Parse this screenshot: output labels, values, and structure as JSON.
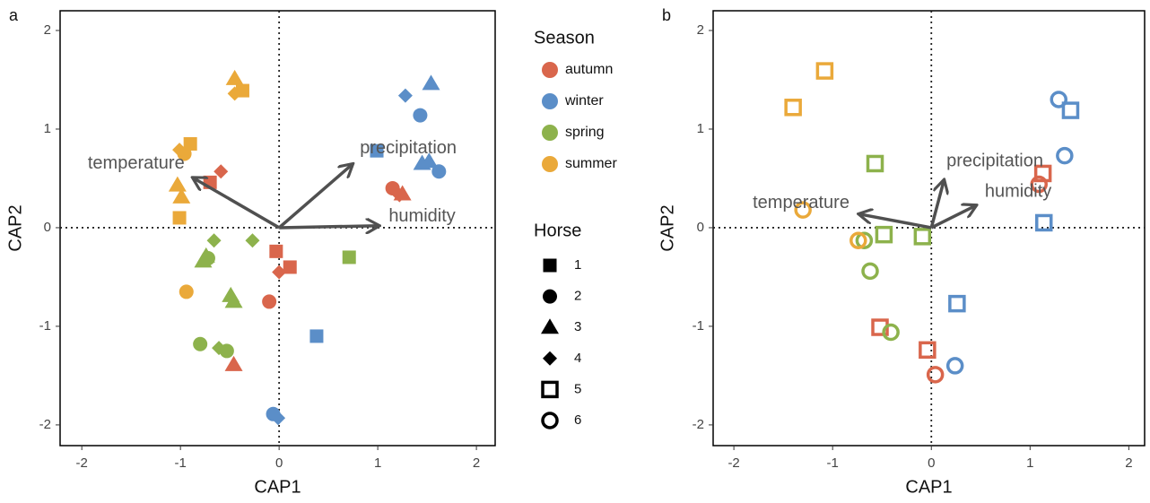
{
  "chart_data": [
    {
      "type": "scatter",
      "panel": "a",
      "xlabel": "CAP1",
      "ylabel": "CAP2",
      "xlim": [
        -2.22,
        2.19
      ],
      "ylim": [
        -2.21,
        2.2
      ],
      "xticks": [
        -2,
        -1,
        0,
        1,
        2
      ],
      "yticks": [
        -2,
        -1,
        0,
        1,
        2
      ],
      "hline": 0,
      "vline": 0,
      "series": [
        {
          "name": "autumn",
          "color": "#d9664c",
          "x": [
            -0.7,
            -0.59,
            1.15,
            1.25,
            1.22,
            -0.03,
            0.11,
            0,
            -0.1,
            -0.46
          ],
          "y": [
            0.46,
            0.57,
            0.4,
            0.34,
            0.33,
            -0.24,
            -0.4,
            -0.45,
            -0.75,
            -1.39
          ],
          "horse": [
            1,
            4,
            2,
            3,
            4,
            1,
            1,
            4,
            2,
            3
          ]
        },
        {
          "name": "winter",
          "color": "#5b8ec8",
          "x": [
            1.28,
            1.54,
            1.43,
            0.99,
            1.45,
            1.52,
            1.62,
            0.38,
            -0.06,
            -0.01
          ],
          "y": [
            1.34,
            1.46,
            1.14,
            0.78,
            0.65,
            0.67,
            0.57,
            -1.1,
            -1.89,
            -1.93
          ],
          "horse": [
            4,
            3,
            2,
            1,
            3,
            3,
            2,
            1,
            2,
            4
          ]
        },
        {
          "name": "spring",
          "color": "#8db24c",
          "x": [
            -0.66,
            -0.27,
            -0.74,
            -0.72,
            -0.77,
            -0.49,
            -0.46,
            0.71,
            -0.8,
            -0.61,
            -0.53
          ],
          "y": [
            -0.13,
            -0.13,
            -0.29,
            -0.31,
            -0.34,
            -0.69,
            -0.75,
            -0.3,
            -1.18,
            -1.22,
            -1.25
          ],
          "horse": [
            4,
            4,
            3,
            2,
            3,
            3,
            3,
            1,
            2,
            4,
            2
          ]
        },
        {
          "name": "summer",
          "color": "#eaa93a",
          "x": [
            -0.45,
            -0.37,
            -0.45,
            -0.9,
            -1.01,
            -0.96,
            -1.03,
            -0.99,
            -1.01,
            -0.94
          ],
          "y": [
            1.51,
            1.39,
            1.36,
            0.85,
            0.79,
            0.75,
            0.43,
            0.31,
            0.1,
            -0.65
          ],
          "horse": [
            3,
            1,
            4,
            1,
            4,
            2,
            3,
            3,
            1,
            2
          ]
        }
      ],
      "vectors": [
        {
          "name": "temperature",
          "x": -0.88,
          "y": 0.51
        },
        {
          "name": "precipitation",
          "x": 0.75,
          "y": 0.65
        },
        {
          "name": "humidity",
          "x": 1.02,
          "y": 0.02
        }
      ]
    },
    {
      "type": "scatter",
      "panel": "b",
      "xlabel": "CAP1",
      "ylabel": "CAP2",
      "xlim": [
        -2.21,
        2.16
      ],
      "ylim": [
        -2.21,
        2.2
      ],
      "xticks": [
        -2,
        -1,
        0,
        1,
        2
      ],
      "yticks": [
        -2,
        -1,
        0,
        1,
        2
      ],
      "hline": 0,
      "vline": 0,
      "series": [
        {
          "name": "autumn",
          "color": "#d9664c",
          "x": [
            1.13,
            1.09,
            -0.52,
            -0.04,
            0.04
          ],
          "y": [
            0.55,
            0.44,
            -1.01,
            -1.24,
            -1.49
          ],
          "horse": [
            5,
            6,
            5,
            5,
            6
          ]
        },
        {
          "name": "winter",
          "color": "#5b8ec8",
          "x": [
            1.29,
            1.41,
            1.35,
            1.14,
            0.26,
            0.24
          ],
          "y": [
            1.3,
            1.19,
            0.73,
            0.05,
            -0.77,
            -1.4
          ],
          "horse": [
            6,
            5,
            6,
            5,
            5,
            6
          ]
        },
        {
          "name": "spring",
          "color": "#8db24c",
          "x": [
            -0.57,
            -0.48,
            -0.09,
            -0.68,
            -0.62,
            -0.41
          ],
          "y": [
            0.65,
            -0.07,
            -0.09,
            -0.13,
            -0.44,
            -1.06
          ],
          "horse": [
            5,
            5,
            5,
            6,
            6,
            6
          ]
        },
        {
          "name": "summer",
          "color": "#eaa93a",
          "x": [
            -1.08,
            -1.4,
            -1.3,
            -0.74
          ],
          "y": [
            1.59,
            1.22,
            0.18,
            -0.13
          ],
          "horse": [
            5,
            5,
            6,
            6
          ]
        }
      ],
      "vectors": [
        {
          "name": "temperature",
          "x": -0.74,
          "y": 0.14
        },
        {
          "name": "precipitation",
          "x": 0.13,
          "y": 0.49
        },
        {
          "name": "humidity",
          "x": 0.46,
          "y": 0.23
        }
      ]
    }
  ],
  "legend": {
    "season_title": "Season",
    "horse_title": "Horse",
    "horses": [
      1,
      2,
      3,
      4,
      5,
      6
    ]
  }
}
